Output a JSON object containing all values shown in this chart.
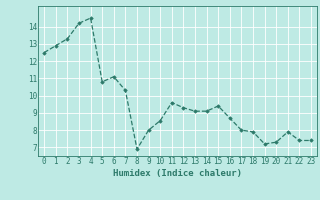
{
  "x": [
    0,
    1,
    2,
    3,
    4,
    5,
    6,
    7,
    8,
    9,
    10,
    11,
    12,
    13,
    14,
    15,
    16,
    17,
    18,
    19,
    20,
    21,
    22,
    23
  ],
  "y": [
    12.5,
    12.9,
    13.3,
    14.2,
    14.5,
    10.8,
    11.1,
    10.3,
    6.9,
    8.0,
    8.55,
    9.6,
    9.3,
    9.1,
    9.1,
    9.4,
    8.7,
    8.0,
    7.9,
    7.2,
    7.3,
    7.9,
    7.4,
    7.4
  ],
  "line_color": "#2d7a6a",
  "marker": "D",
  "markersize": 1.8,
  "linewidth": 0.9,
  "linestyle": "--",
  "xlabel": "Humidex (Indice chaleur)",
  "xlabel_fontsize": 6.5,
  "background_color": "#beeae4",
  "grid_color": "#ffffff",
  "ylim": [
    6.5,
    15.2
  ],
  "xlim": [
    -0.5,
    23.5
  ],
  "yticks": [
    7,
    8,
    9,
    10,
    11,
    12,
    13,
    14
  ],
  "xticks": [
    0,
    1,
    2,
    3,
    4,
    5,
    6,
    7,
    8,
    9,
    10,
    11,
    12,
    13,
    14,
    15,
    16,
    17,
    18,
    19,
    20,
    21,
    22,
    23
  ],
  "tick_fontsize": 5.5,
  "tick_color": "#2d7a6a",
  "spine_color": "#2d7a6a"
}
